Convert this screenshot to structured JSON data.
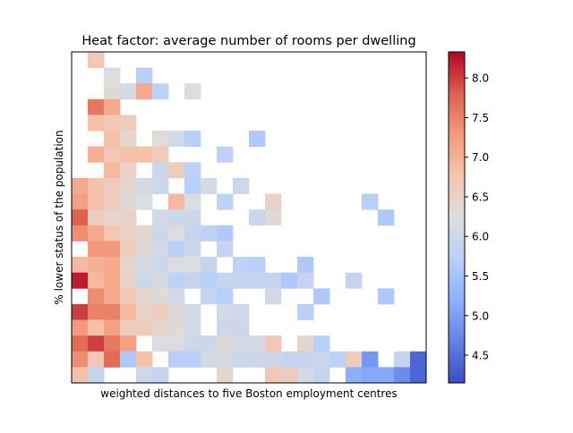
{
  "chart_data": {
    "type": "heatmap",
    "title": "Heat factor: average number of rooms per dwelling",
    "xlabel": "weighted distances to five Boston employment centres",
    "ylabel": "% lower status of the population",
    "xticks": "hidden",
    "yticks": "hidden",
    "n_cols": 22,
    "n_rows": 21,
    "colormap": "coolwarm",
    "colorbar": {
      "min": 4.15,
      "max": 8.33,
      "ticks": [
        "4.5",
        "5.0",
        "5.5",
        "6.0",
        "6.5",
        "7.0",
        "7.5",
        "8.0"
      ],
      "tick_values": [
        4.5,
        5.0,
        5.5,
        6.0,
        6.5,
        7.0,
        7.5,
        8.0
      ]
    },
    "rows_note": "row 0 = top of plot (high % lower status); null = no data",
    "cells": [
      [
        null,
        6.7,
        null,
        null,
        null,
        null,
        null,
        null,
        null,
        null,
        null,
        null,
        null,
        null,
        null,
        null,
        null,
        null,
        null,
        null,
        null,
        null
      ],
      [
        null,
        null,
        6.2,
        null,
        5.7,
        null,
        null,
        null,
        null,
        null,
        null,
        null,
        null,
        null,
        null,
        null,
        null,
        null,
        null,
        null,
        null,
        null
      ],
      [
        null,
        null,
        6.3,
        6.1,
        7.1,
        5.8,
        null,
        6.2,
        null,
        null,
        null,
        null,
        null,
        null,
        null,
        null,
        null,
        null,
        null,
        null,
        null,
        null
      ],
      [
        null,
        7.6,
        7.1,
        null,
        null,
        null,
        null,
        null,
        null,
        null,
        null,
        null,
        null,
        null,
        null,
        null,
        null,
        null,
        null,
        null,
        null,
        null
      ],
      [
        null,
        6.8,
        6.7,
        6.6,
        null,
        null,
        null,
        null,
        null,
        null,
        null,
        null,
        null,
        null,
        null,
        null,
        null,
        null,
        null,
        null,
        null,
        null
      ],
      [
        null,
        null,
        6.8,
        6.4,
        null,
        6.3,
        6.1,
        5.7,
        null,
        null,
        null,
        5.6,
        null,
        null,
        null,
        null,
        null,
        null,
        null,
        null,
        null,
        null
      ],
      [
        null,
        7.0,
        6.7,
        6.8,
        6.8,
        6.6,
        null,
        null,
        null,
        5.8,
        null,
        null,
        null,
        null,
        null,
        null,
        null,
        null,
        null,
        null,
        null,
        null
      ],
      [
        null,
        null,
        6.9,
        6.5,
        null,
        6.0,
        6.6,
        5.8,
        null,
        null,
        null,
        null,
        null,
        null,
        null,
        null,
        null,
        null,
        null,
        null,
        null,
        null
      ],
      [
        7.1,
        6.8,
        6.6,
        6.4,
        6.1,
        6.0,
        null,
        5.7,
        6.1,
        null,
        6.0,
        null,
        null,
        null,
        null,
        null,
        null,
        null,
        null,
        null,
        null,
        null
      ],
      [
        7.2,
        6.8,
        6.6,
        6.3,
        6.2,
        null,
        6.9,
        6.2,
        null,
        5.8,
        null,
        null,
        6.5,
        null,
        null,
        null,
        null,
        null,
        5.7,
        null,
        null,
        null
      ],
      [
        7.8,
        6.6,
        6.4,
        6.5,
        null,
        6.1,
        6.0,
        6.0,
        null,
        null,
        null,
        6.0,
        6.3,
        null,
        null,
        null,
        null,
        null,
        null,
        5.6,
        null,
        null
      ],
      [
        7.4,
        7.1,
        6.7,
        6.5,
        6.4,
        6.0,
        6.2,
        5.9,
        5.8,
        5.6,
        null,
        null,
        null,
        null,
        null,
        null,
        null,
        null,
        null,
        null,
        null,
        null
      ],
      [
        null,
        7.3,
        7.3,
        6.6,
        6.3,
        6.1,
        5.7,
        6.0,
        null,
        5.9,
        null,
        null,
        null,
        null,
        null,
        null,
        null,
        null,
        null,
        null,
        null,
        null
      ],
      [
        6.9,
        7.0,
        7.1,
        6.4,
        6.1,
        6.0,
        6.2,
        6.2,
        5.9,
        null,
        5.8,
        5.7,
        null,
        null,
        5.6,
        null,
        null,
        null,
        null,
        null,
        null,
        null
      ],
      [
        8.2,
        6.9,
        7.1,
        6.5,
        6.0,
        6.1,
        5.8,
        5.9,
        5.7,
        5.9,
        5.9,
        5.9,
        5.9,
        5.6,
        5.9,
        null,
        null,
        5.9,
        null,
        null,
        null,
        null
      ],
      [
        null,
        7.4,
        7.1,
        6.7,
        6.4,
        6.3,
        6.1,
        null,
        5.9,
        5.7,
        null,
        null,
        6.1,
        null,
        null,
        5.6,
        null,
        null,
        null,
        5.6,
        null,
        null
      ],
      [
        8.0,
        7.5,
        7.5,
        6.9,
        6.5,
        6.6,
        6.3,
        6.1,
        null,
        6.1,
        6.0,
        null,
        null,
        null,
        5.7,
        null,
        null,
        null,
        null,
        null,
        null,
        null
      ],
      [
        7.3,
        6.8,
        7.2,
        6.6,
        6.6,
        6.4,
        6.3,
        6.1,
        null,
        6.0,
        6.0,
        null,
        null,
        null,
        null,
        null,
        null,
        null,
        null,
        null,
        null,
        null
      ],
      [
        7.7,
        8.0,
        7.6,
        7.2,
        null,
        6.2,
        6.2,
        6.0,
        6.0,
        6.3,
        6.1,
        6.1,
        6.7,
        null,
        6.4,
        5.7,
        null,
        null,
        null,
        null,
        null,
        null
      ],
      [
        7.4,
        6.7,
        7.7,
        5.6,
        6.8,
        null,
        5.7,
        5.7,
        6.1,
        6.1,
        6.0,
        6.0,
        6.0,
        5.9,
        5.9,
        6.0,
        5.8,
        6.6,
        4.9,
        null,
        5.9,
        4.4
      ],
      [
        6.8,
        5.9,
        null,
        null,
        6.0,
        5.9,
        null,
        null,
        null,
        6.4,
        null,
        null,
        6.7,
        6.6,
        6.1,
        5.9,
        null,
        5.2,
        5.1,
        5.1,
        4.8,
        4.4
      ]
    ]
  }
}
